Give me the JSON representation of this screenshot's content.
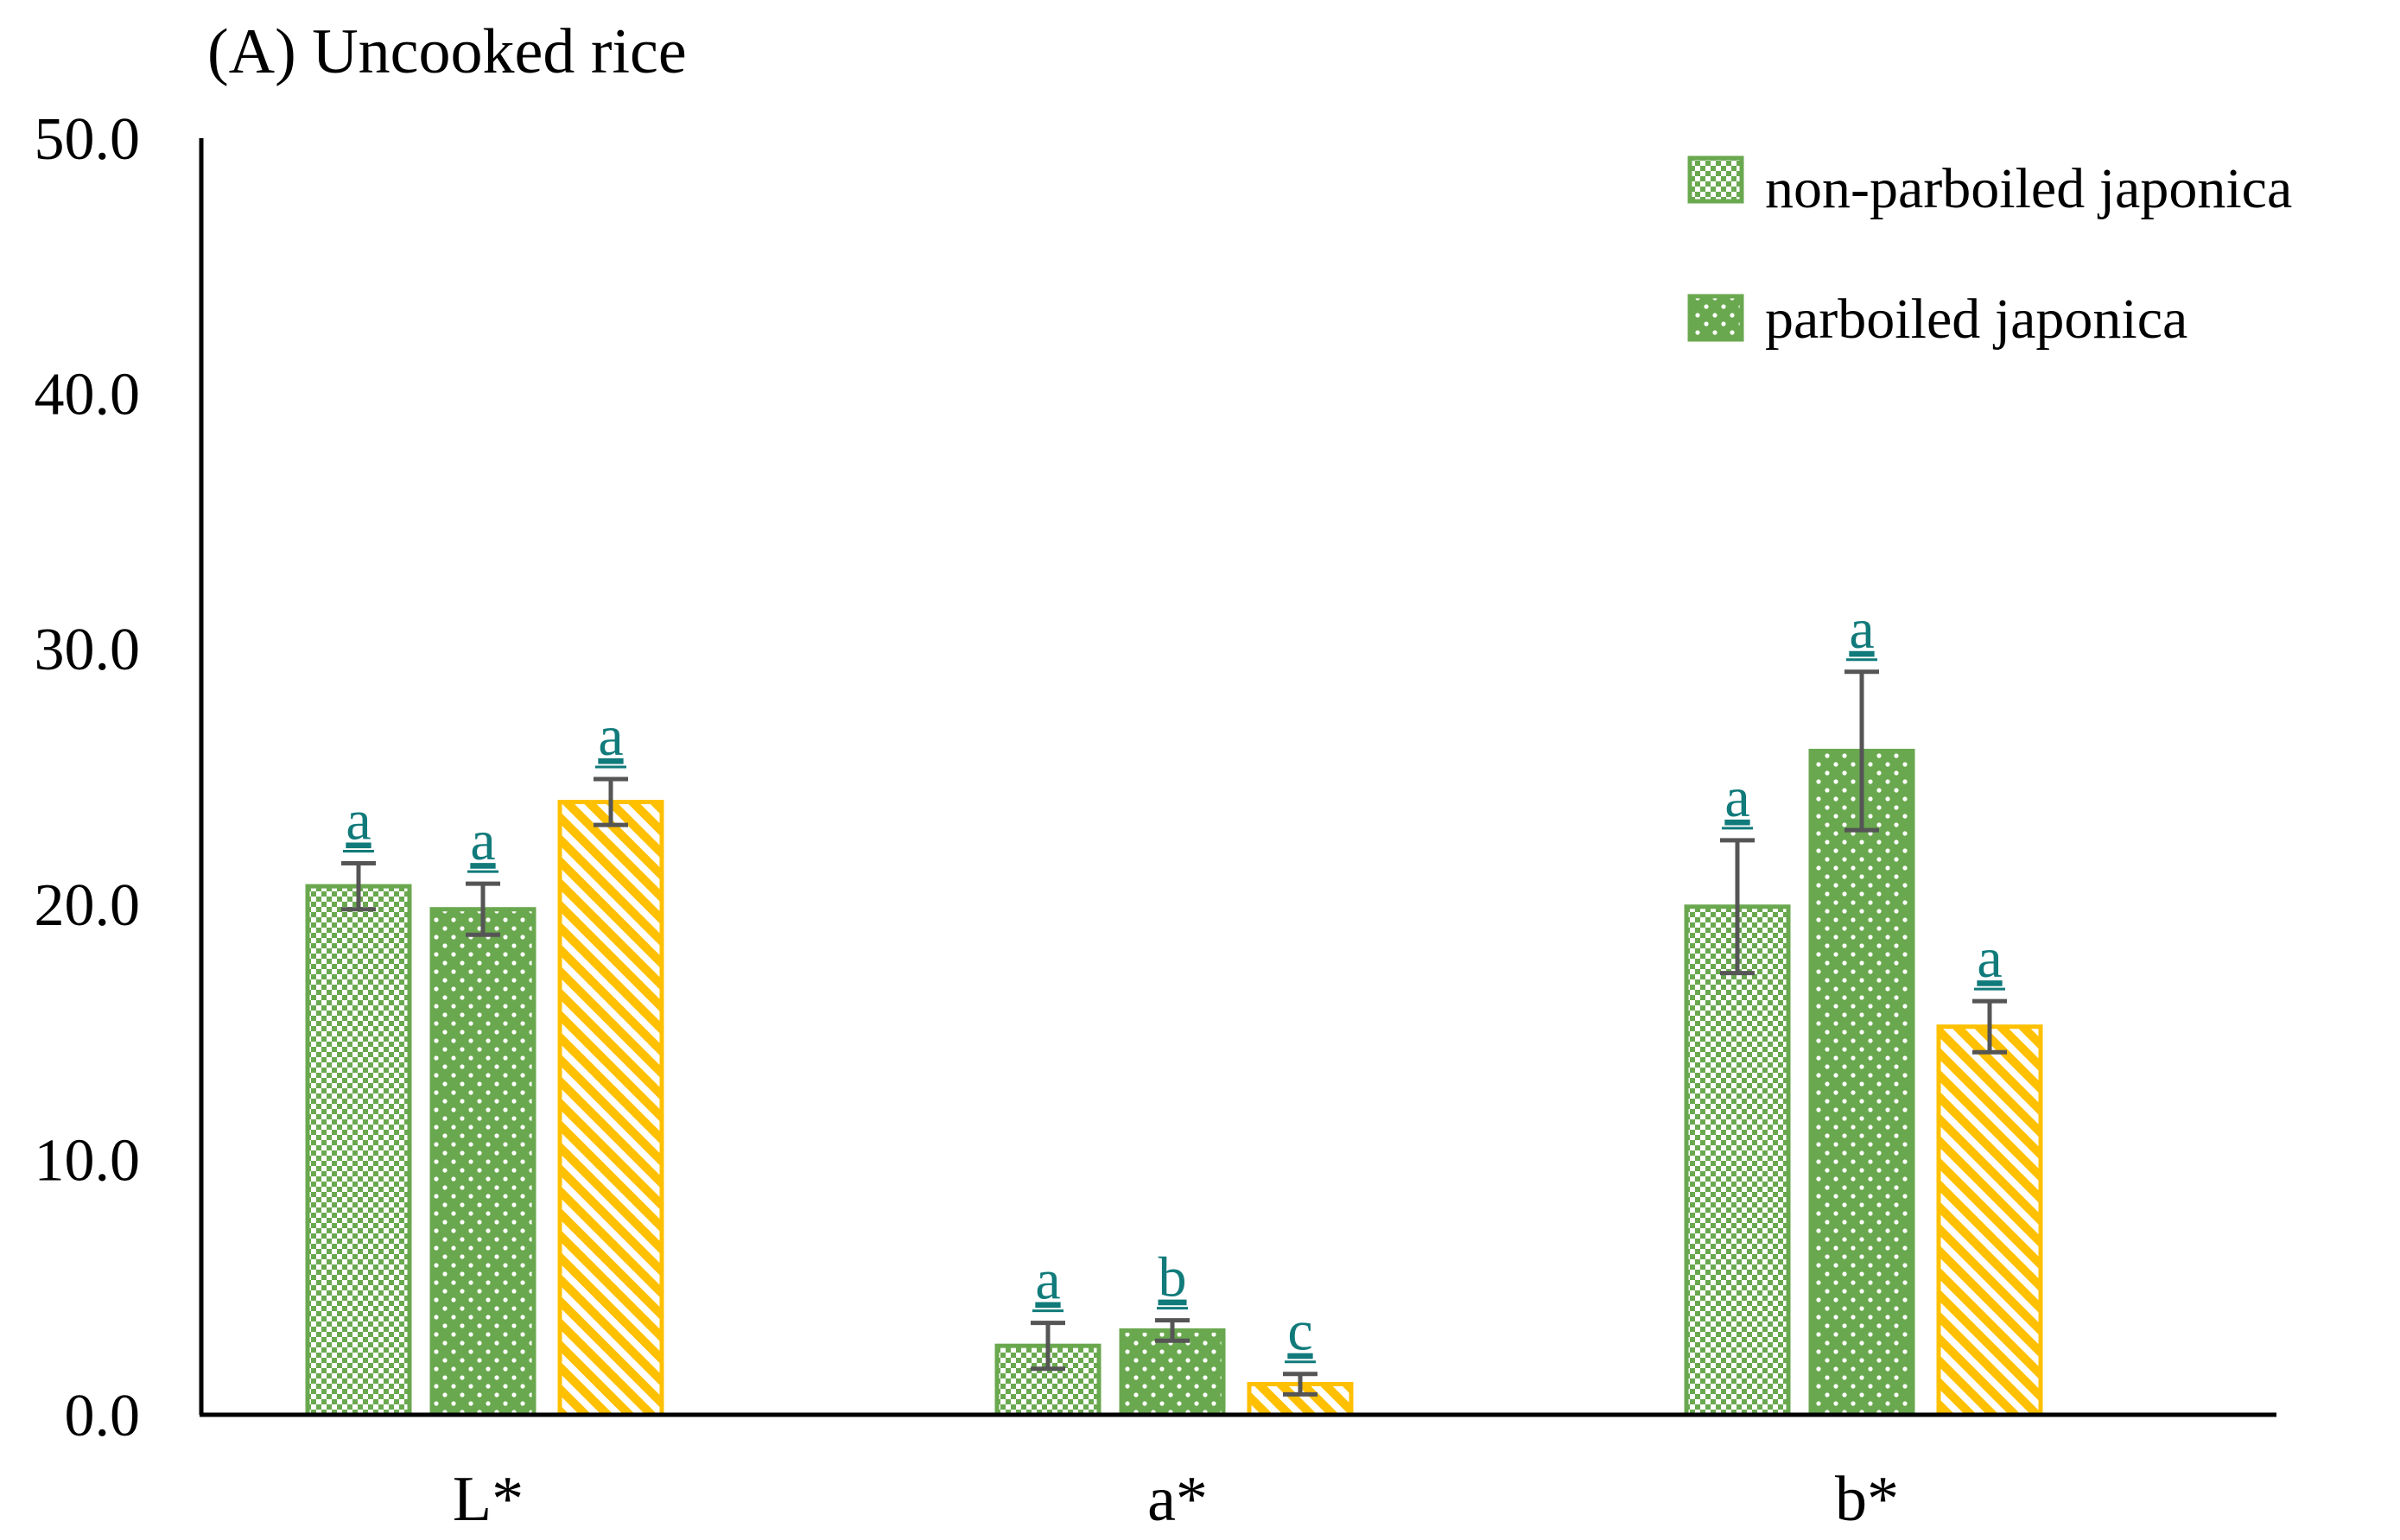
{
  "chart_data": {
    "type": "bar",
    "title": "(A) Uncooked rice",
    "xlabel": "",
    "ylabel": "",
    "ylim": [
      0,
      50
    ],
    "yticks": [
      "0.0",
      "10.0",
      "20.0",
      "30.0",
      "40.0",
      "50.0"
    ],
    "categories": [
      "L*",
      "a*",
      "b*"
    ],
    "series": [
      {
        "name": "non-parboiled japonica",
        "values": [
          20.7,
          2.7,
          19.9
        ],
        "errors": [
          0.9,
          0.9,
          2.6
        ],
        "significance": [
          "a",
          "a",
          "a"
        ],
        "color": "#6aa84f",
        "pattern": "checker"
      },
      {
        "name": "parboiled japonica",
        "values": [
          19.8,
          3.3,
          26.0
        ],
        "errors": [
          1.0,
          0.4,
          3.1
        ],
        "significance": [
          "a",
          "b",
          "a"
        ],
        "color": "#6aa84f",
        "pattern": "dots"
      },
      {
        "name": "",
        "values": [
          24.0,
          1.2,
          15.2
        ],
        "errors": [
          0.9,
          0.4,
          1.0
        ],
        "significance": [
          "a",
          "c",
          "a"
        ],
        "color": "#ffc000",
        "pattern": "diagonal"
      }
    ],
    "legend": {
      "position": "top-right",
      "entries": [
        "non-parboiled japonica",
        "parboiled japonica"
      ]
    }
  }
}
